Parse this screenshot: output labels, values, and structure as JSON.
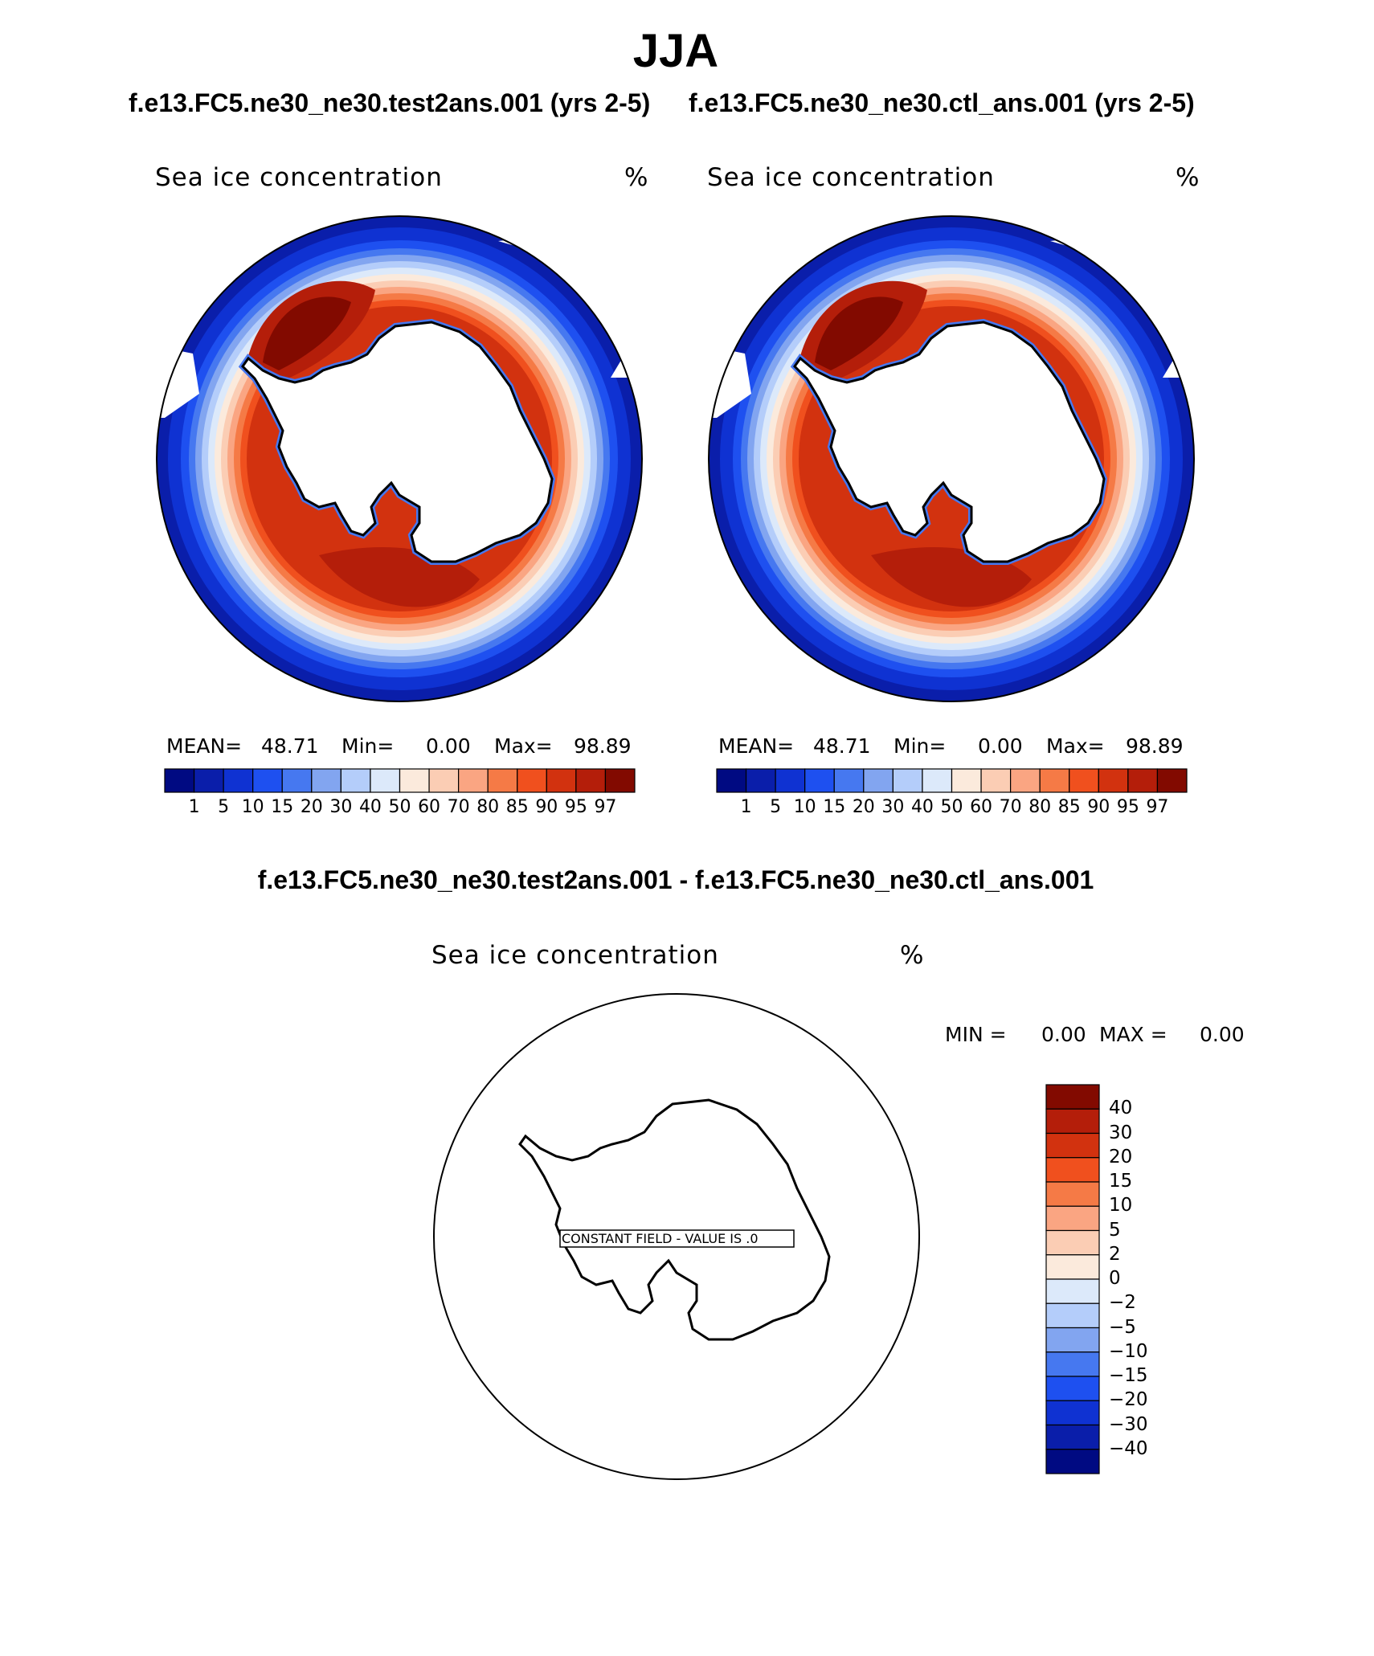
{
  "figure": {
    "title": "JJA",
    "case_a": "f.e13.FC5.ne30_ne30.test2ans.001 (yrs 2-5)",
    "case_b": "f.e13.FC5.ne30_ne30.ctl_ans.001 (yrs 2-5)",
    "diff_title": "f.e13.FC5.ne30_ne30.test2ans.001 - f.e13.FC5.ne30_ne30.ctl_ans.001"
  },
  "panels": [
    {
      "variable": "Sea ice concentration",
      "units": "%",
      "mean_label": "MEAN=",
      "mean": "48.71",
      "min_label": "Min=",
      "min": "0.00",
      "max_label": "Max=",
      "max": "98.89"
    },
    {
      "variable": "Sea ice concentration",
      "units": "%",
      "mean_label": "MEAN=",
      "mean": "48.71",
      "min_label": "Min=",
      "min": "0.00",
      "max_label": "Max=",
      "max": "98.89"
    }
  ],
  "diff_panel": {
    "variable": "Sea ice concentration",
    "units": "%",
    "min_label": "MIN =",
    "min": "0.00",
    "max_label": "MAX =",
    "max": "0.00",
    "constant_field_label": "CONSTANT FIELD - VALUE IS .0"
  },
  "colorbars": {
    "abs_colors": [
      "#000a82",
      "#0a1eaa",
      "#0f32d2",
      "#1e50f0",
      "#4678f0",
      "#82a5f0",
      "#b4cdfa",
      "#dce9fa",
      "#fbeadc",
      "#fbcdb4",
      "#faa582",
      "#f57a46",
      "#f0501e",
      "#d2320f",
      "#b41e0a",
      "#820a00"
    ],
    "abs_levels": [
      "1",
      "5",
      "10",
      "15",
      "20",
      "30",
      "40",
      "50",
      "60",
      "70",
      "80",
      "85",
      "90",
      "95",
      "97"
    ],
    "diff_colors": [
      "#820a00",
      "#b41e0a",
      "#d2320f",
      "#f0501e",
      "#f57a46",
      "#faa582",
      "#fbcdb4",
      "#fbeadc",
      "#dce9fa",
      "#b4cdfa",
      "#82a5f0",
      "#4678f0",
      "#1e50f0",
      "#0f32d2",
      "#0a1eaa",
      "#000a82"
    ],
    "diff_levels": [
      "40",
      "30",
      "20",
      "15",
      "10",
      "5",
      "2",
      "0",
      "−2",
      "−5",
      "−10",
      "−15",
      "−20",
      "−30",
      "−40"
    ]
  }
}
